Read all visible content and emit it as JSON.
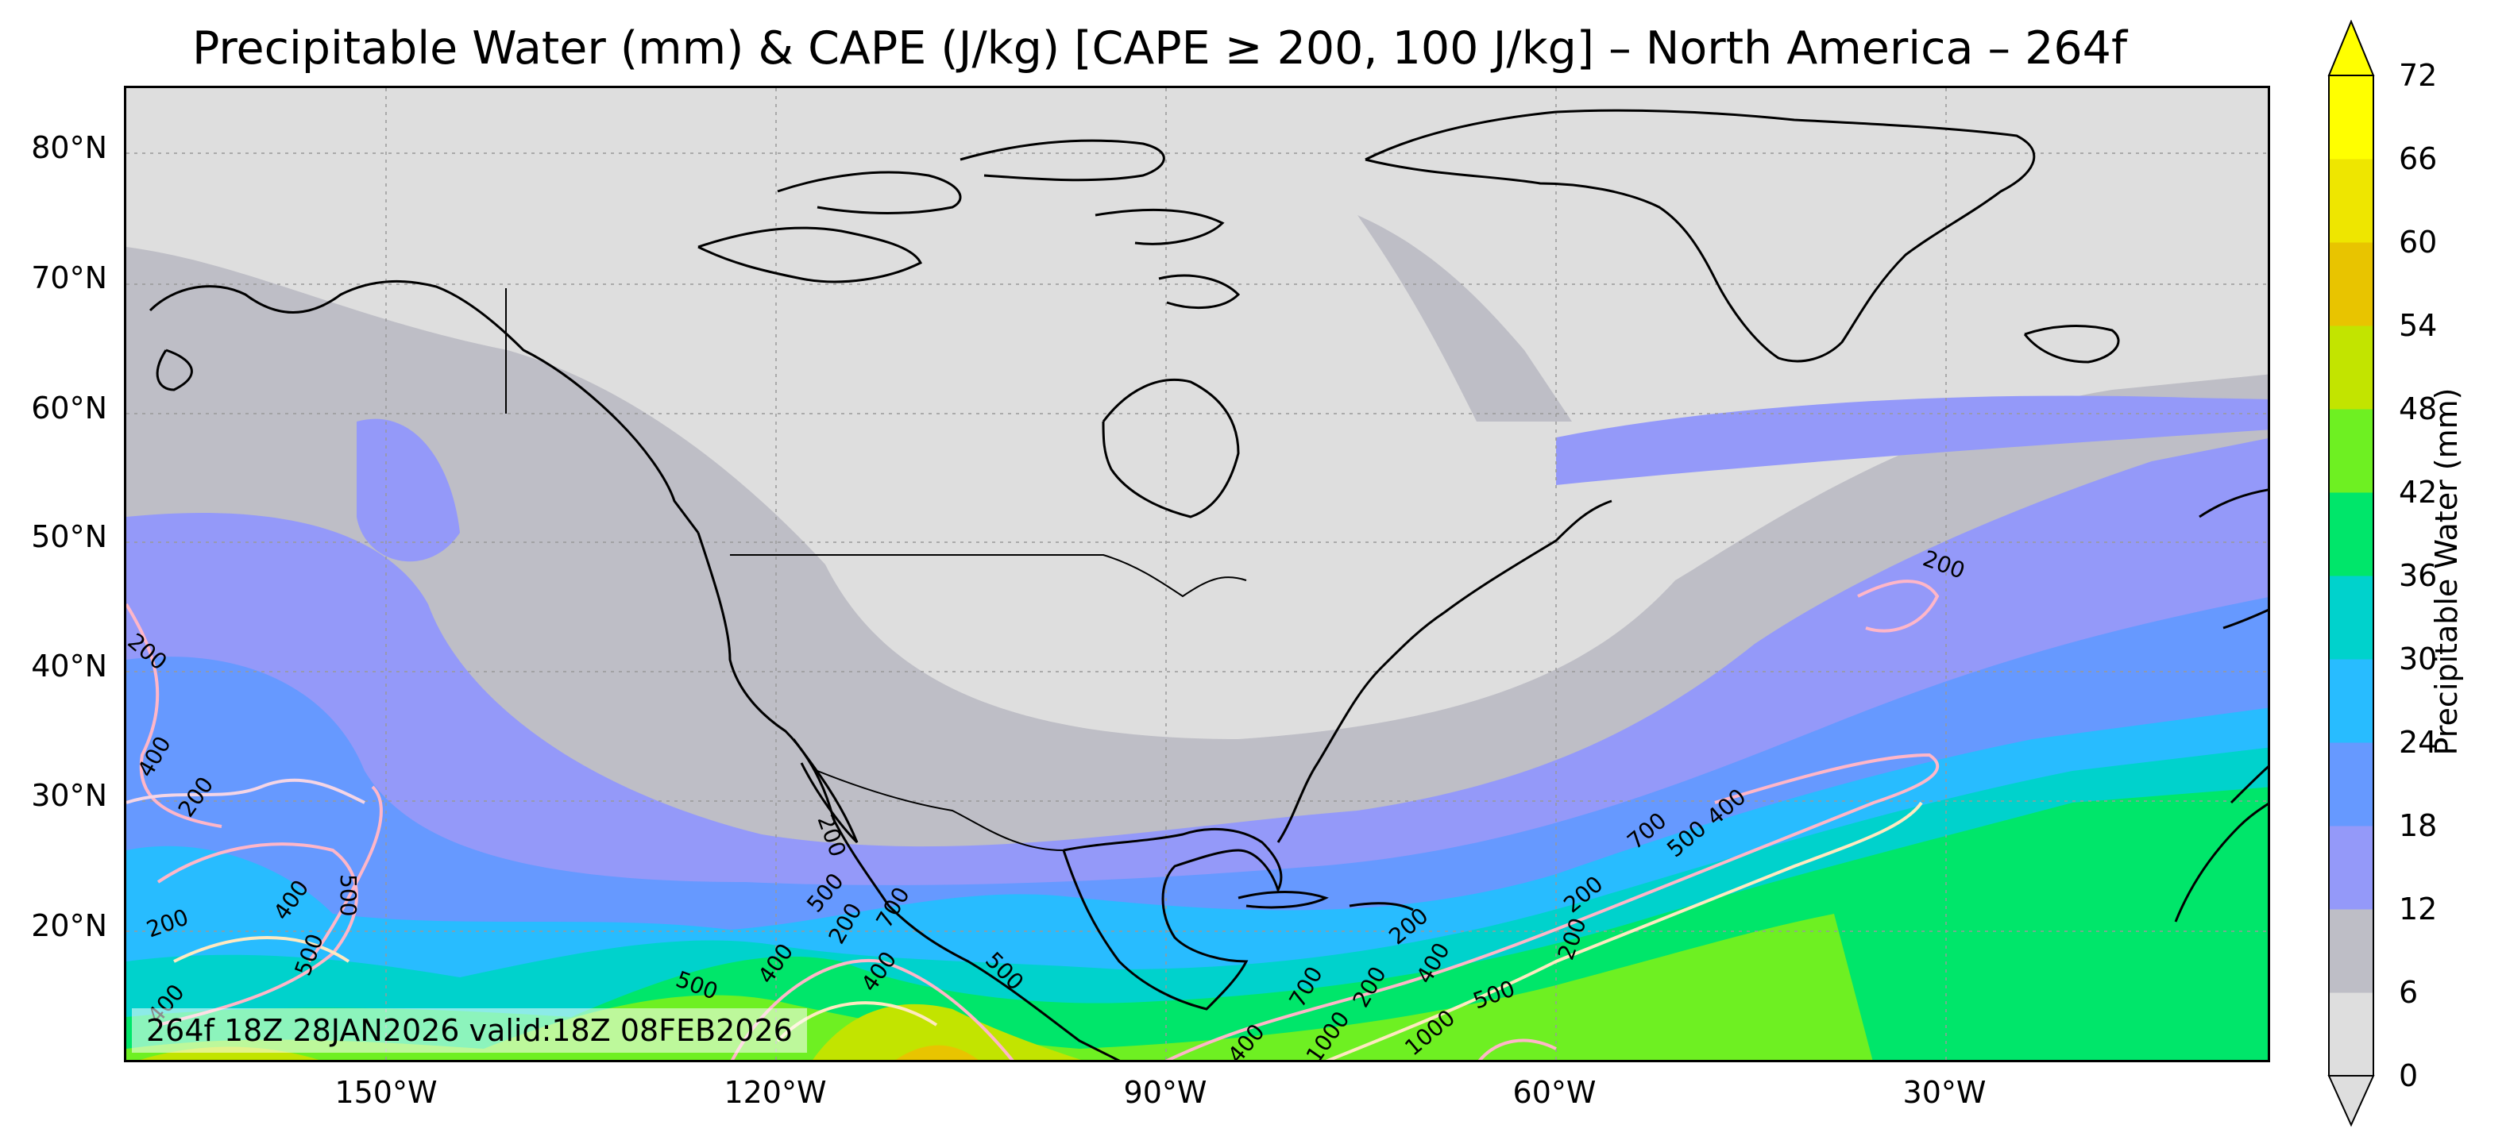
{
  "title": "Precipitable Water (mm) & CAPE (J/kg) [CAPE ≥ 200, 100 J/kg] – North America – 264f",
  "info_box": "264f 18Z 28JAN2026 valid:18Z 08FEB2026",
  "lat_labels": [
    "80°N",
    "70°N",
    "60°N",
    "50°N",
    "40°N",
    "30°N",
    "20°N"
  ],
  "lon_labels": [
    "150°W",
    "120°W",
    "90°W",
    "60°W",
    "30°W"
  ],
  "colorbar": {
    "label": "Precipitable Water (mm)",
    "ticks": [
      "0",
      "6",
      "12",
      "18",
      "24",
      "30",
      "36",
      "42",
      "48",
      "54",
      "60",
      "66",
      "72"
    ],
    "colors": [
      "#dedede",
      "#bebec6",
      "#9499f9",
      "#6699ff",
      "#28bcff",
      "#00d2cc",
      "#00e66a",
      "#6ef022",
      "#c2e400",
      "#e8c400",
      "#eee600",
      "#ffff00"
    ]
  },
  "cape_labels": [
    "200",
    "400",
    "200",
    "500",
    "400",
    "500",
    "400",
    "200",
    "500",
    "200",
    "400",
    "700",
    "500",
    "400",
    "500",
    "200",
    "700",
    "500",
    "400",
    "200",
    "200",
    "500",
    "400",
    "200",
    "1000",
    "700",
    "400",
    "200",
    "1000",
    "200"
  ]
}
